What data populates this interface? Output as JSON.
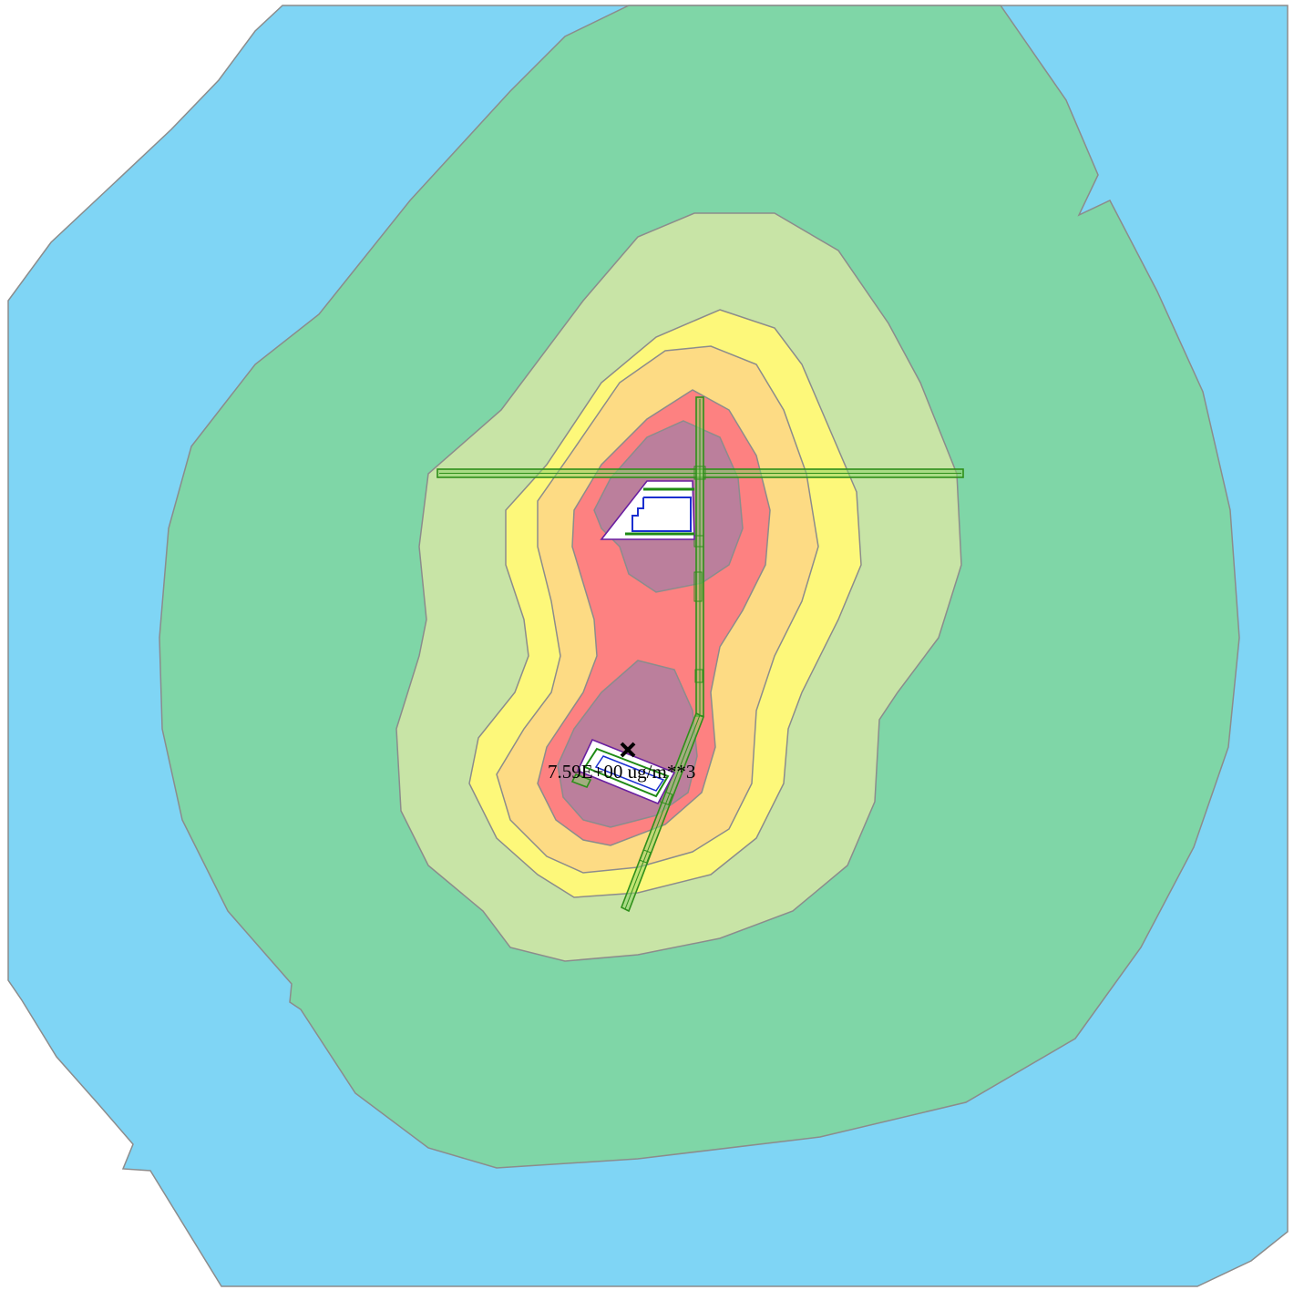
{
  "map": {
    "max_concentration_label": "7.59E+00 ug/m**3",
    "max_marker_icon": "x-cross-icon",
    "contour_colors": {
      "level_1": "#7fd5f5",
      "level_2": "#7fd6a7",
      "level_3": "#c8e4a6",
      "level_4": "#fdf87a",
      "level_5": "#fddb84",
      "level_6": "#fd8181",
      "level_7": "#bb7f9c"
    },
    "road_color": "#2f8f1a",
    "building_outline_color": "#6a1fa0"
  }
}
